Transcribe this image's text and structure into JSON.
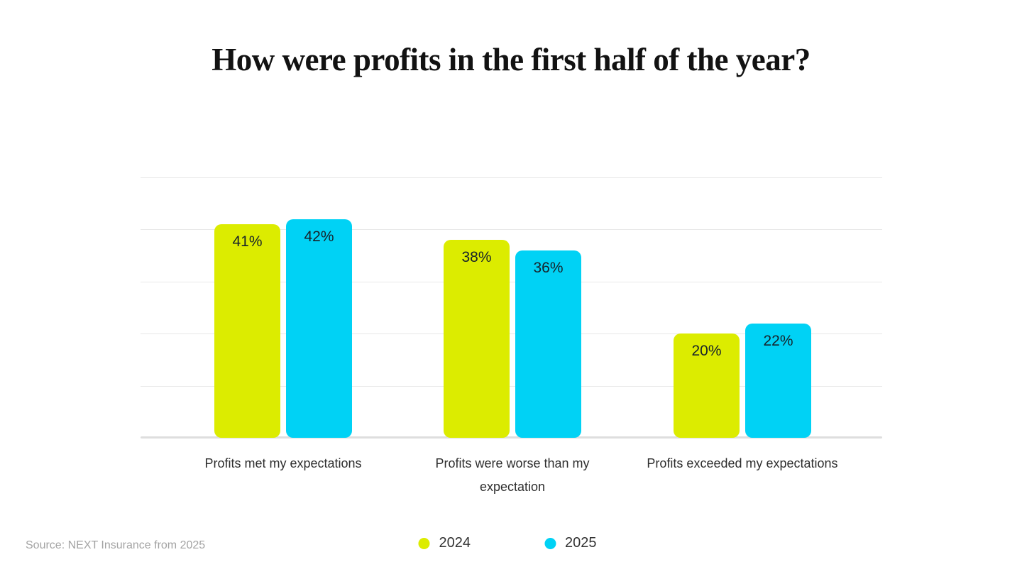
{
  "source_note": "Source: NEXT Insurance from 2025",
  "colors": {
    "series_2024": "#dcec00",
    "series_2025": "#00d2f5",
    "gridline": "#e8e8e8",
    "axis_line": "#dedede",
    "title_text": "#121212",
    "value_label_text": "#17222a",
    "category_text": "#2e2e2e",
    "source_text": "#a3a3a3"
  },
  "chart_data": {
    "type": "bar",
    "title": "How were profits in the first half of the year?",
    "categories": [
      "Profits met my expectations",
      "Profits were worse than my expectation",
      "Profits exceeded my expectations"
    ],
    "series": [
      {
        "name": "2024",
        "color": "#dcec00",
        "values": [
          41,
          38,
          20
        ]
      },
      {
        "name": "2025",
        "color": "#00d2f5",
        "values": [
          42,
          36,
          22
        ]
      }
    ],
    "value_suffix": "%",
    "value_labels": "inside-top",
    "xlabel": "",
    "ylabel": "",
    "ylim": [
      0,
      50
    ],
    "grid_step": 10,
    "grid": "horizontal",
    "y_tick_labels_visible": false,
    "legend_position": "bottom-center"
  }
}
